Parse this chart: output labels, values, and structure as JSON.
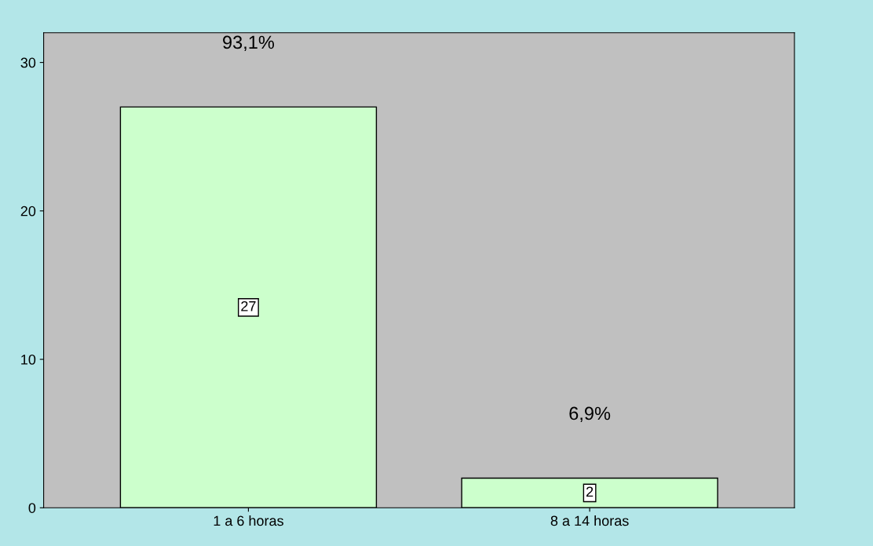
{
  "chart_data": {
    "type": "bar",
    "categories": [
      "1 a 6 horas",
      "8 a 14 horas"
    ],
    "values": [
      27,
      2
    ],
    "color": "#ccffcc",
    "ylim": [
      0,
      32
    ],
    "yticks": [
      0,
      10,
      20,
      30
    ],
    "grid": false,
    "data_labels": true,
    "annotations": [
      "93,1%",
      "6,9%"
    ]
  }
}
